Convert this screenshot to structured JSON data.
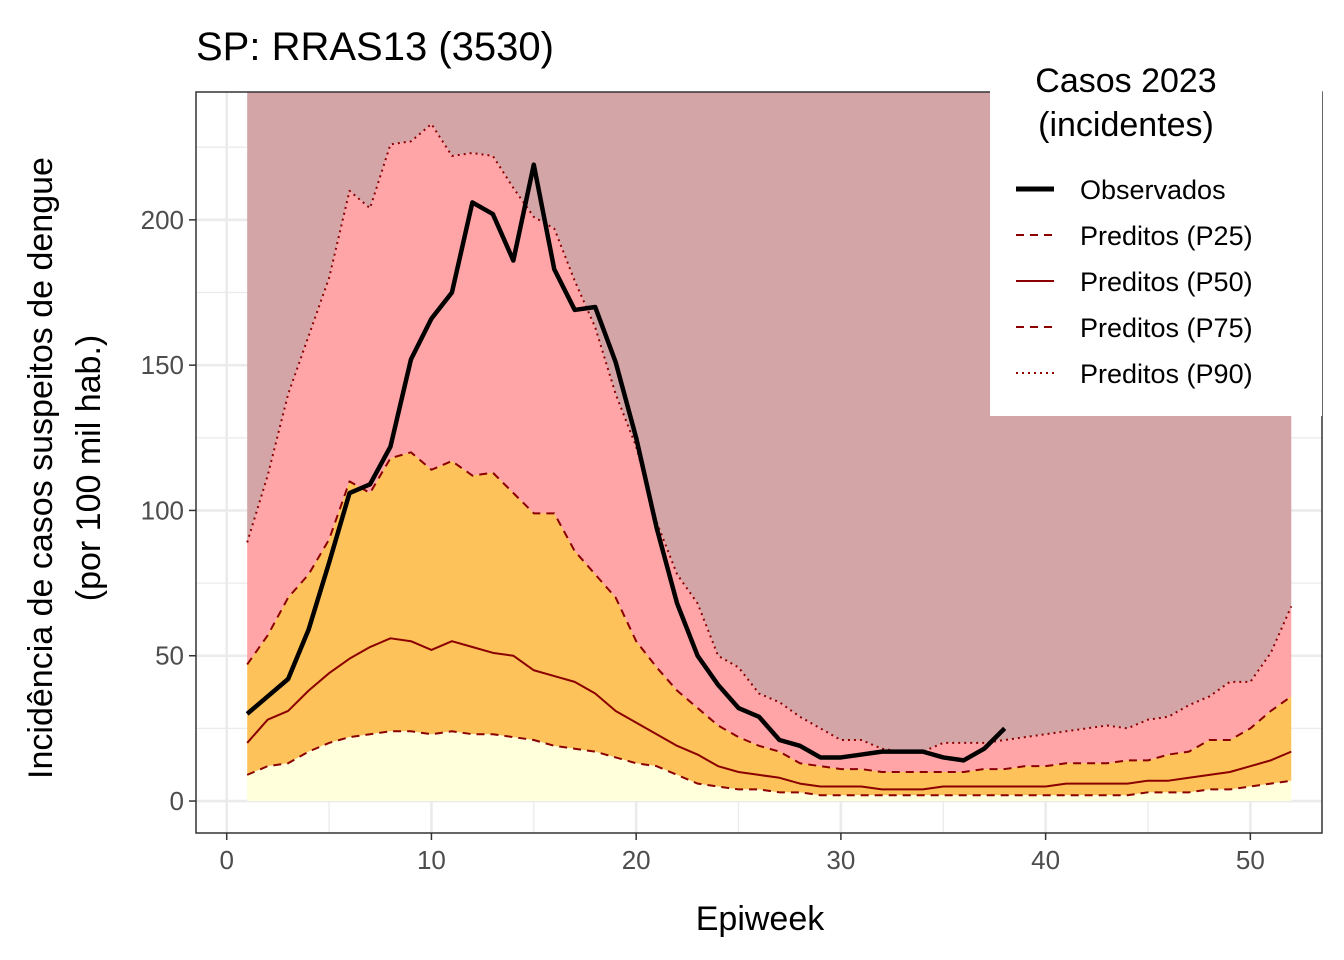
{
  "chart_data": {
    "type": "area",
    "title": "SP: RRAS13 (3530)",
    "xlabel": "Epiweek",
    "ylabel": "Incidência de casos suspeitos de dengue",
    "ylabel2": "(por 100 mil hab.)",
    "xlim": [
      -1.5,
      53.5
    ],
    "ylim": [
      -11,
      244
    ],
    "xticks": [
      0,
      10,
      20,
      30,
      40,
      50
    ],
    "yticks": [
      0,
      50,
      100,
      150,
      200
    ],
    "grid": true,
    "legend_position": "top-right",
    "legend": {
      "title_line1": "Casos 2023",
      "title_line2": "(incidentes)",
      "entries": [
        {
          "key": "observed",
          "label": "Observados"
        },
        {
          "key": "p25",
          "label": "Preditos (P25)"
        },
        {
          "key": "p50",
          "label": "Preditos (P50)"
        },
        {
          "key": "p75",
          "label": "Preditos (P75)"
        },
        {
          "key": "p90",
          "label": "Preditos (P90)"
        }
      ]
    },
    "colors": {
      "observed": "#000000",
      "predicted_line": "#8b0000",
      "band_below_p25": "#ffffdc",
      "band_p25_p75": "#fdc35a",
      "band_p75_p90": "#ffa5a8",
      "band_above_p90": "#d4a5a7"
    },
    "background_band_top": 244,
    "weeks": [
      1,
      2,
      3,
      4,
      5,
      6,
      7,
      8,
      9,
      10,
      11,
      12,
      13,
      14,
      15,
      16,
      17,
      18,
      19,
      20,
      21,
      22,
      23,
      24,
      25,
      26,
      27,
      28,
      29,
      30,
      31,
      32,
      33,
      34,
      35,
      36,
      37,
      38,
      39,
      40,
      41,
      42,
      43,
      44,
      45,
      46,
      47,
      48,
      49,
      50,
      51,
      52
    ],
    "series": [
      {
        "key": "p25",
        "name": "Preditos (P25)",
        "values": [
          9,
          12,
          13,
          17,
          20,
          22,
          23,
          24,
          24,
          23,
          24,
          23,
          23,
          22,
          21,
          19,
          18,
          17,
          15,
          13,
          12,
          9,
          6,
          5,
          4,
          4,
          3,
          3,
          2,
          2,
          2,
          2,
          2,
          2,
          2,
          2,
          2,
          2,
          2,
          2,
          2,
          2,
          2,
          2,
          3,
          3,
          3,
          4,
          4,
          5,
          6,
          7
        ]
      },
      {
        "key": "p50",
        "name": "Preditos (P50)",
        "values": [
          20,
          28,
          31,
          38,
          44,
          49,
          53,
          56,
          55,
          52,
          55,
          53,
          51,
          50,
          45,
          43,
          41,
          37,
          31,
          27,
          23,
          19,
          16,
          12,
          10,
          9,
          8,
          6,
          5,
          5,
          5,
          4,
          4,
          4,
          5,
          5,
          5,
          5,
          5,
          5,
          6,
          6,
          6,
          6,
          7,
          7,
          8,
          9,
          10,
          12,
          14,
          17
        ]
      },
      {
        "key": "p75",
        "name": "Preditos (P75)",
        "values": [
          47,
          57,
          70,
          78,
          90,
          110,
          106,
          118,
          120,
          114,
          117,
          112,
          113,
          106,
          99,
          99,
          86,
          78,
          70,
          55,
          46,
          38,
          32,
          26,
          22,
          19,
          17,
          13,
          12,
          11,
          11,
          10,
          10,
          10,
          10,
          10,
          11,
          11,
          12,
          12,
          13,
          13,
          13,
          14,
          14,
          16,
          17,
          21,
          21,
          25,
          31,
          36
        ]
      },
      {
        "key": "p90",
        "name": "Preditos (P90)",
        "values": [
          89,
          112,
          140,
          160,
          180,
          210,
          204,
          226,
          227,
          233,
          222,
          223,
          222,
          211,
          201,
          197,
          179,
          163,
          140,
          122,
          96,
          78,
          68,
          50,
          46,
          37,
          34,
          29,
          25,
          21,
          21,
          18,
          17,
          17,
          20,
          20,
          20,
          21,
          22,
          23,
          24,
          25,
          26,
          25,
          28,
          29,
          33,
          36,
          41,
          41,
          51,
          67
        ]
      },
      {
        "key": "observed",
        "name": "Observados",
        "values": [
          30,
          36,
          42,
          59,
          82,
          106,
          109,
          122,
          152,
          166,
          175,
          206,
          202,
          186,
          219,
          183,
          169,
          170,
          151,
          125,
          94,
          68,
          50,
          40,
          32,
          29,
          21,
          19,
          15,
          15,
          16,
          17,
          17,
          17,
          15,
          14,
          18,
          25
        ]
      }
    ]
  }
}
